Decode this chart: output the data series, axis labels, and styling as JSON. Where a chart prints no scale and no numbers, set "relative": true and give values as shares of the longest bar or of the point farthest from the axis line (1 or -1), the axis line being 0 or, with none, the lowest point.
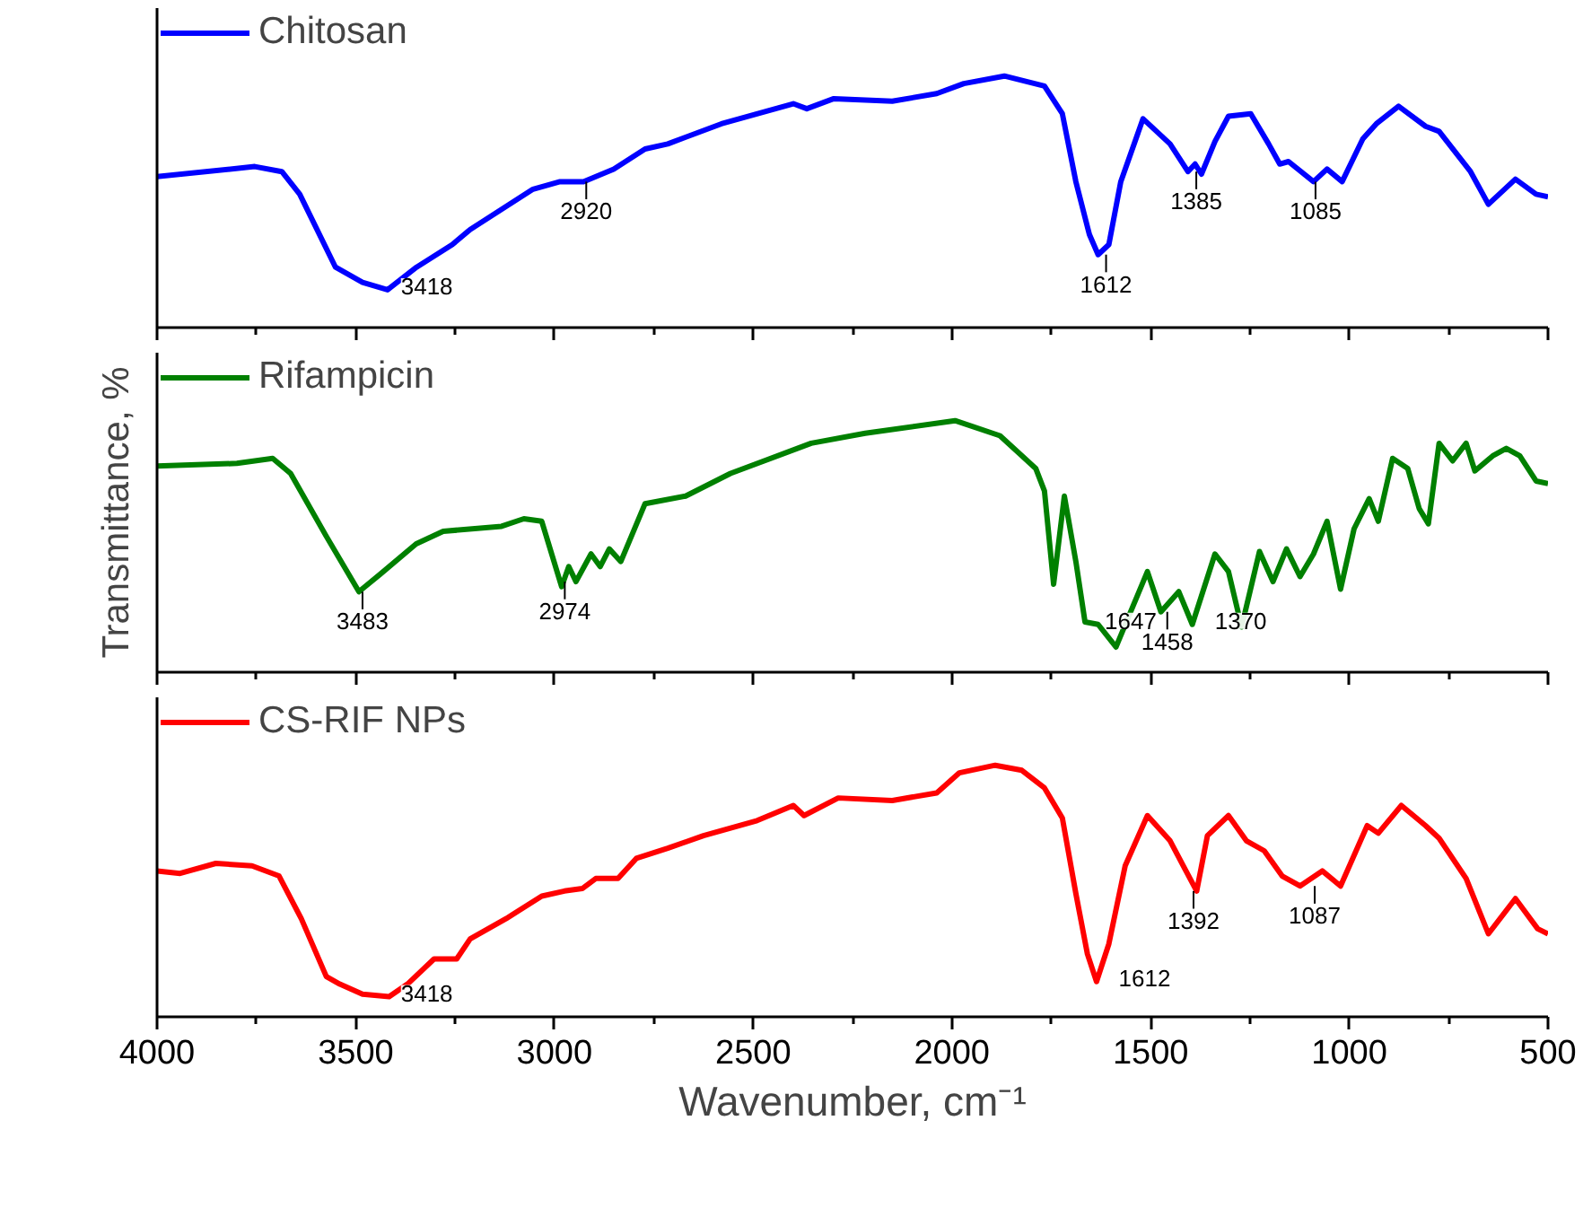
{
  "chart_data": [
    {
      "type": "line",
      "relative": true,
      "xlim": [
        4000,
        500
      ],
      "xticks": [
        4000,
        {
          "value": 3750,
          "label": null
        },
        3500,
        {
          "value": 3250,
          "label": null
        },
        3000,
        {
          "value": 2750,
          "label": null
        },
        2500,
        {
          "value": 2250,
          "label": null
        },
        2000,
        {
          "value": 1750,
          "label": null
        },
        1500,
        {
          "value": 1250,
          "label": null
        },
        1000,
        {
          "value": 750,
          "label": null
        },
        500
      ],
      "tick_labels": false,
      "legend": "top left",
      "grid": false,
      "series": [
        {
          "name": "Chitosan",
          "color": "#0000ff",
          "x": [
            4000,
            3754,
            3686,
            3641,
            3551,
            3483,
            3420,
            3347,
            3257,
            3212,
            3054,
            2986,
            2927,
            2851,
            2772,
            2715,
            2580,
            2399,
            2365,
            2297,
            2150,
            2038,
            1970,
            1868,
            1767,
            1722,
            1688,
            1654,
            1632,
            1605,
            1575,
            1519,
            1451,
            1406,
            1388,
            1372,
            1338,
            1304,
            1248,
            1203,
            1175,
            1153,
            1090,
            1056,
            1018,
            966,
            932,
            876,
            808,
            774,
            695,
            650,
            582,
            530,
            500
          ],
          "values": [
            0.6,
            0.64,
            0.62,
            0.53,
            0.24,
            0.18,
            0.15,
            0.24,
            0.33,
            0.39,
            0.55,
            0.58,
            0.58,
            0.63,
            0.71,
            0.73,
            0.81,
            0.89,
            0.87,
            0.91,
            0.9,
            0.93,
            0.97,
            1.0,
            0.96,
            0.85,
            0.58,
            0.37,
            0.29,
            0.33,
            0.58,
            0.83,
            0.73,
            0.62,
            0.65,
            0.61,
            0.74,
            0.84,
            0.85,
            0.73,
            0.65,
            0.66,
            0.58,
            0.63,
            0.58,
            0.75,
            0.81,
            0.88,
            0.8,
            0.78,
            0.62,
            0.49,
            0.59,
            0.53,
            0.52
          ]
        }
      ],
      "annotations": [
        {
          "text": "3418",
          "x": 3418,
          "y": 0.15
        },
        {
          "text": "2920",
          "x": 2920,
          "y": 0.58
        },
        {
          "text": "1612",
          "x": 1612,
          "y": 0.29
        },
        {
          "text": "1385",
          "x": 1385,
          "y": 0.62
        },
        {
          "text": "1085",
          "x": 1085,
          "y": 0.58
        }
      ]
    },
    {
      "type": "line",
      "relative": true,
      "ylabel": "Transmittance, %",
      "xlim": [
        4000,
        500
      ],
      "xticks": [
        4000,
        {
          "value": 3750,
          "label": null
        },
        3500,
        {
          "value": 3250,
          "label": null
        },
        3000,
        {
          "value": 2750,
          "label": null
        },
        2500,
        {
          "value": 2250,
          "label": null
        },
        2000,
        {
          "value": 1750,
          "label": null
        },
        1500,
        {
          "value": 1250,
          "label": null
        },
        1000,
        {
          "value": 750,
          "label": null
        },
        500
      ],
      "tick_labels": false,
      "legend": "top left",
      "grid": false,
      "series": [
        {
          "name": "Rifampicin",
          "color": "#008000",
          "x": [
            4000,
            3799,
            3709,
            3664,
            3574,
            3492,
            3438,
            3348,
            3280,
            3133,
            3077,
            3032,
            2982,
            2964,
            2946,
            2908,
            2885,
            2862,
            2833,
            2772,
            2670,
            2557,
            2354,
            2218,
            1992,
            1879,
            1789,
            1767,
            1744,
            1717,
            1688,
            1665,
            1632,
            1587,
            1553,
            1508,
            1474,
            1429,
            1395,
            1338,
            1304,
            1271,
            1226,
            1192,
            1158,
            1124,
            1090,
            1056,
            1022,
            988,
            950,
            927,
            891,
            853,
            824,
            801,
            774,
            740,
            706,
            684,
            639,
            605,
            571,
            530,
            500
          ],
          "values": [
            0.82,
            0.83,
            0.85,
            0.79,
            0.54,
            0.32,
            0.39,
            0.51,
            0.56,
            0.58,
            0.61,
            0.6,
            0.34,
            0.42,
            0.36,
            0.47,
            0.42,
            0.49,
            0.44,
            0.67,
            0.7,
            0.79,
            0.91,
            0.95,
            1.0,
            0.94,
            0.81,
            0.72,
            0.35,
            0.7,
            0.44,
            0.2,
            0.19,
            0.1,
            0.23,
            0.4,
            0.24,
            0.32,
            0.19,
            0.47,
            0.4,
            0.18,
            0.48,
            0.36,
            0.49,
            0.38,
            0.47,
            0.6,
            0.33,
            0.57,
            0.69,
            0.6,
            0.85,
            0.81,
            0.65,
            0.59,
            0.91,
            0.84,
            0.91,
            0.8,
            0.86,
            0.89,
            0.86,
            0.76,
            0.75
          ]
        }
      ],
      "annotations": [
        {
          "text": "3483",
          "x": 3483,
          "y": 0.32
        },
        {
          "text": "2974",
          "x": 2974,
          "y": 0.36
        },
        {
          "text": "1647",
          "x": 1647,
          "y": 0.19
        },
        {
          "text": "1458",
          "x": 1458,
          "y": 0.24
        },
        {
          "text": "1370",
          "x": 1370,
          "y": 0.19
        }
      ]
    },
    {
      "type": "line",
      "relative": true,
      "xlabel": "Wavenumber, cm⁻¹",
      "xlim": [
        4000,
        500
      ],
      "xticks": [
        4000,
        {
          "value": 3750,
          "label": null
        },
        3500,
        {
          "value": 3250,
          "label": null
        },
        3000,
        {
          "value": 2750,
          "label": null
        },
        2500,
        {
          "value": 2250,
          "label": null
        },
        2000,
        {
          "value": 1750,
          "label": null
        },
        1500,
        {
          "value": 1250,
          "label": null
        },
        1000,
        {
          "value": 750,
          "label": null
        },
        500
      ],
      "tick_labels": "x",
      "legend": "top left",
      "grid": false,
      "series": [
        {
          "name": "CS-RIF NPs",
          "color": "#ff0000",
          "x": [
            4000,
            3942,
            3852,
            3761,
            3693,
            3637,
            3574,
            3540,
            3483,
            3416,
            3370,
            3303,
            3246,
            3212,
            3122,
            3032,
            2975,
            2930,
            2896,
            2840,
            2794,
            2715,
            2625,
            2490,
            2399,
            2372,
            2286,
            2150,
            2038,
            1981,
            1891,
            1824,
            1767,
            1722,
            1688,
            1659,
            1636,
            1605,
            1564,
            1508,
            1451,
            1411,
            1384,
            1357,
            1304,
            1259,
            1214,
            1169,
            1124,
            1068,
            1022,
            955,
            927,
            869,
            808,
            774,
            706,
            650,
            582,
            526,
            500
          ],
          "values": [
            0.58,
            0.57,
            0.61,
            0.6,
            0.56,
            0.39,
            0.16,
            0.13,
            0.09,
            0.08,
            0.13,
            0.23,
            0.23,
            0.31,
            0.39,
            0.48,
            0.5,
            0.51,
            0.55,
            0.55,
            0.63,
            0.67,
            0.72,
            0.78,
            0.84,
            0.8,
            0.87,
            0.86,
            0.89,
            0.97,
            1.0,
            0.98,
            0.91,
            0.79,
            0.49,
            0.25,
            0.14,
            0.29,
            0.6,
            0.8,
            0.7,
            0.58,
            0.5,
            0.72,
            0.8,
            0.7,
            0.66,
            0.56,
            0.52,
            0.58,
            0.52,
            0.76,
            0.73,
            0.84,
            0.76,
            0.71,
            0.55,
            0.33,
            0.47,
            0.35,
            0.33
          ]
        }
      ],
      "annotations": [
        {
          "text": "3418",
          "x": 3418,
          "y": 0.08
        },
        {
          "text": "1612",
          "x": 1612,
          "y": 0.14
        },
        {
          "text": "1392",
          "x": 1392,
          "y": 0.5
        },
        {
          "text": "1087",
          "x": 1087,
          "y": 0.52
        }
      ]
    }
  ]
}
